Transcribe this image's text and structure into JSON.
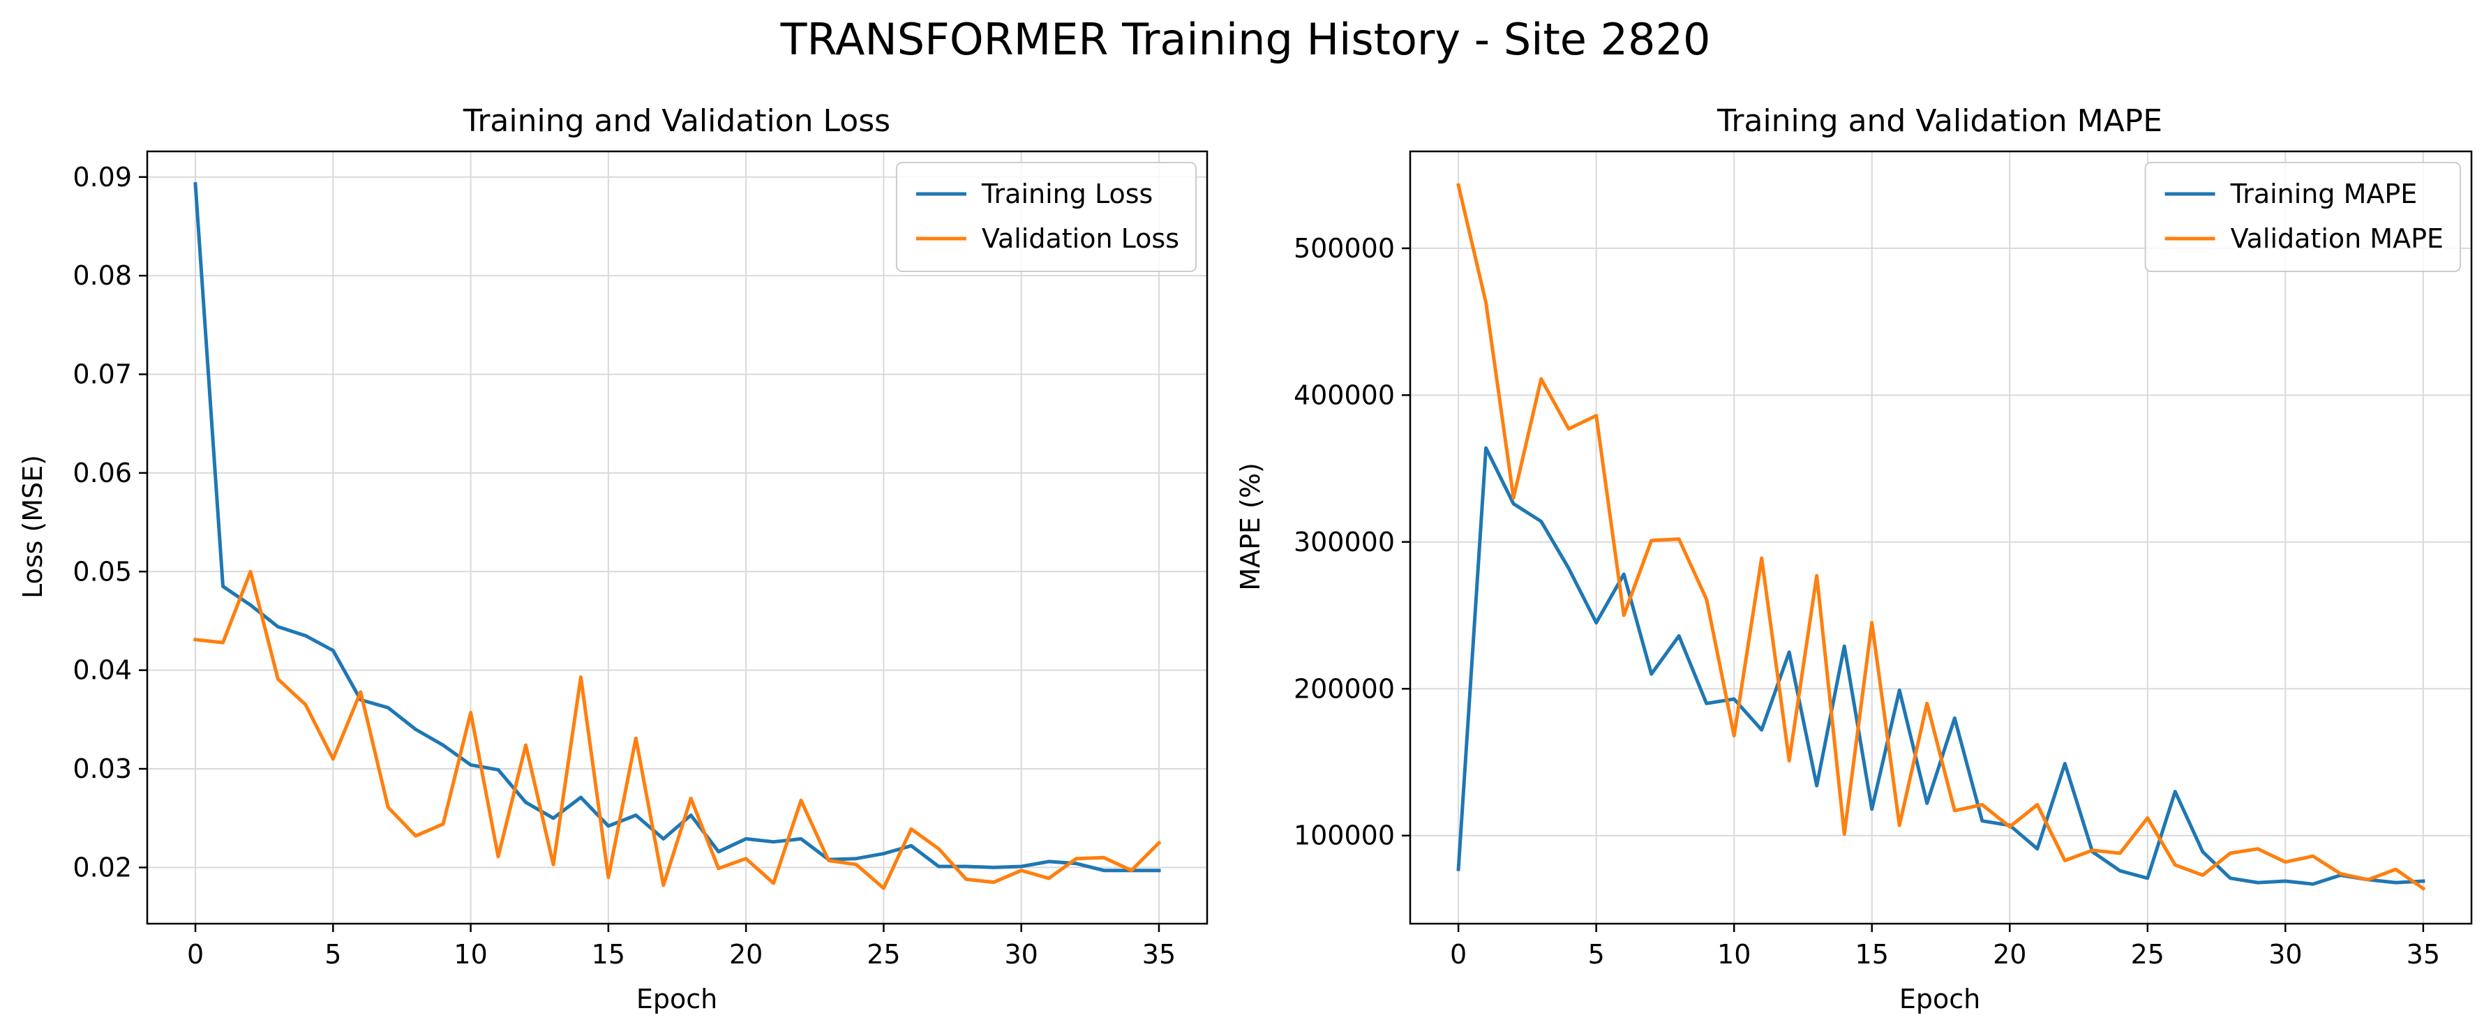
{
  "suptitle": "TRANSFORMER Training History - Site 2820",
  "colors": {
    "training": "#1f77b4",
    "validation": "#ff7f0e",
    "grid": "#d9d9d9",
    "axis": "#000000"
  },
  "chart_data": [
    {
      "type": "line",
      "title": "Training and Validation Loss",
      "xlabel": "Epoch",
      "ylabel": "Loss (MSE)",
      "xlim": [
        -1.75,
        36.75
      ],
      "ylim": [
        0.0143,
        0.0926
      ],
      "xticks": [
        0,
        5,
        10,
        15,
        20,
        25,
        30,
        35
      ],
      "yticks": [
        0.02,
        0.03,
        0.04,
        0.05,
        0.06,
        0.07,
        0.08,
        0.09
      ],
      "ytick_labels": [
        "0.02",
        "0.03",
        "0.04",
        "0.05",
        "0.06",
        "0.07",
        "0.08",
        "0.09"
      ],
      "grid": true,
      "legend": "top-right",
      "x": [
        0,
        1,
        2,
        3,
        4,
        5,
        6,
        7,
        8,
        9,
        10,
        11,
        12,
        13,
        14,
        15,
        16,
        17,
        18,
        19,
        20,
        21,
        22,
        23,
        24,
        25,
        26,
        27,
        28,
        29,
        30,
        31,
        32,
        33,
        34,
        35
      ],
      "series": [
        {
          "name": "Training Loss",
          "color": "#1f77b4",
          "values": [
            0.0893,
            0.0485,
            0.0466,
            0.0444,
            0.0435,
            0.042,
            0.037,
            0.0362,
            0.034,
            0.0324,
            0.0304,
            0.0299,
            0.0266,
            0.025,
            0.0271,
            0.0242,
            0.0253,
            0.0229,
            0.0253,
            0.0216,
            0.0229,
            0.0226,
            0.0229,
            0.0208,
            0.0209,
            0.0214,
            0.0222,
            0.0201,
            0.0201,
            0.02,
            0.0201,
            0.0206,
            0.0204,
            0.0197,
            0.0197,
            0.0197
          ]
        },
        {
          "name": "Validation Loss",
          "color": "#ff7f0e",
          "values": [
            0.0431,
            0.0428,
            0.05,
            0.0391,
            0.0365,
            0.031,
            0.0378,
            0.0261,
            0.0232,
            0.0244,
            0.0357,
            0.0211,
            0.0324,
            0.0203,
            0.0393,
            0.019,
            0.0331,
            0.0182,
            0.027,
            0.0199,
            0.0209,
            0.0184,
            0.0268,
            0.0207,
            0.0203,
            0.0179,
            0.0239,
            0.0219,
            0.0188,
            0.0185,
            0.0197,
            0.0189,
            0.0209,
            0.021,
            0.0197,
            0.0225
          ]
        }
      ]
    },
    {
      "type": "line",
      "title": "Training and Validation MAPE",
      "xlabel": "Epoch",
      "ylabel": "MAPE (%)",
      "xlim": [
        -1.75,
        36.75
      ],
      "ylim": [
        40000,
        566000
      ],
      "xticks": [
        0,
        5,
        10,
        15,
        20,
        25,
        30,
        35
      ],
      "yticks": [
        100000,
        200000,
        300000,
        400000,
        500000
      ],
      "ytick_labels": [
        "100000",
        "200000",
        "300000",
        "400000",
        "500000"
      ],
      "grid": true,
      "legend": "top-right",
      "x": [
        0,
        1,
        2,
        3,
        4,
        5,
        6,
        7,
        8,
        9,
        10,
        11,
        12,
        13,
        14,
        15,
        16,
        17,
        18,
        19,
        20,
        21,
        22,
        23,
        24,
        25,
        26,
        27,
        28,
        29,
        30,
        31,
        32,
        33,
        34,
        35
      ],
      "series": [
        {
          "name": "Training MAPE",
          "color": "#1f77b4",
          "values": [
            77000,
            364000,
            326000,
            314000,
            282000,
            245000,
            278000,
            210000,
            236000,
            190000,
            193000,
            172000,
            225000,
            134000,
            229000,
            118000,
            199000,
            122000,
            180000,
            110000,
            107000,
            91000,
            149000,
            89000,
            76000,
            71000,
            130000,
            89000,
            71000,
            68000,
            69000,
            67000,
            73000,
            70000,
            68000,
            69000
          ]
        },
        {
          "name": "Validation MAPE",
          "color": "#ff7f0e",
          "values": [
            543000,
            463000,
            330000,
            411000,
            377000,
            386000,
            250000,
            301000,
            302000,
            261000,
            168000,
            289000,
            151000,
            277000,
            101000,
            245000,
            107000,
            190000,
            117000,
            121000,
            106000,
            121000,
            83000,
            90000,
            88000,
            112000,
            80000,
            73000,
            88000,
            91000,
            82000,
            86000,
            74000,
            70000,
            77000,
            64000
          ]
        }
      ]
    }
  ]
}
